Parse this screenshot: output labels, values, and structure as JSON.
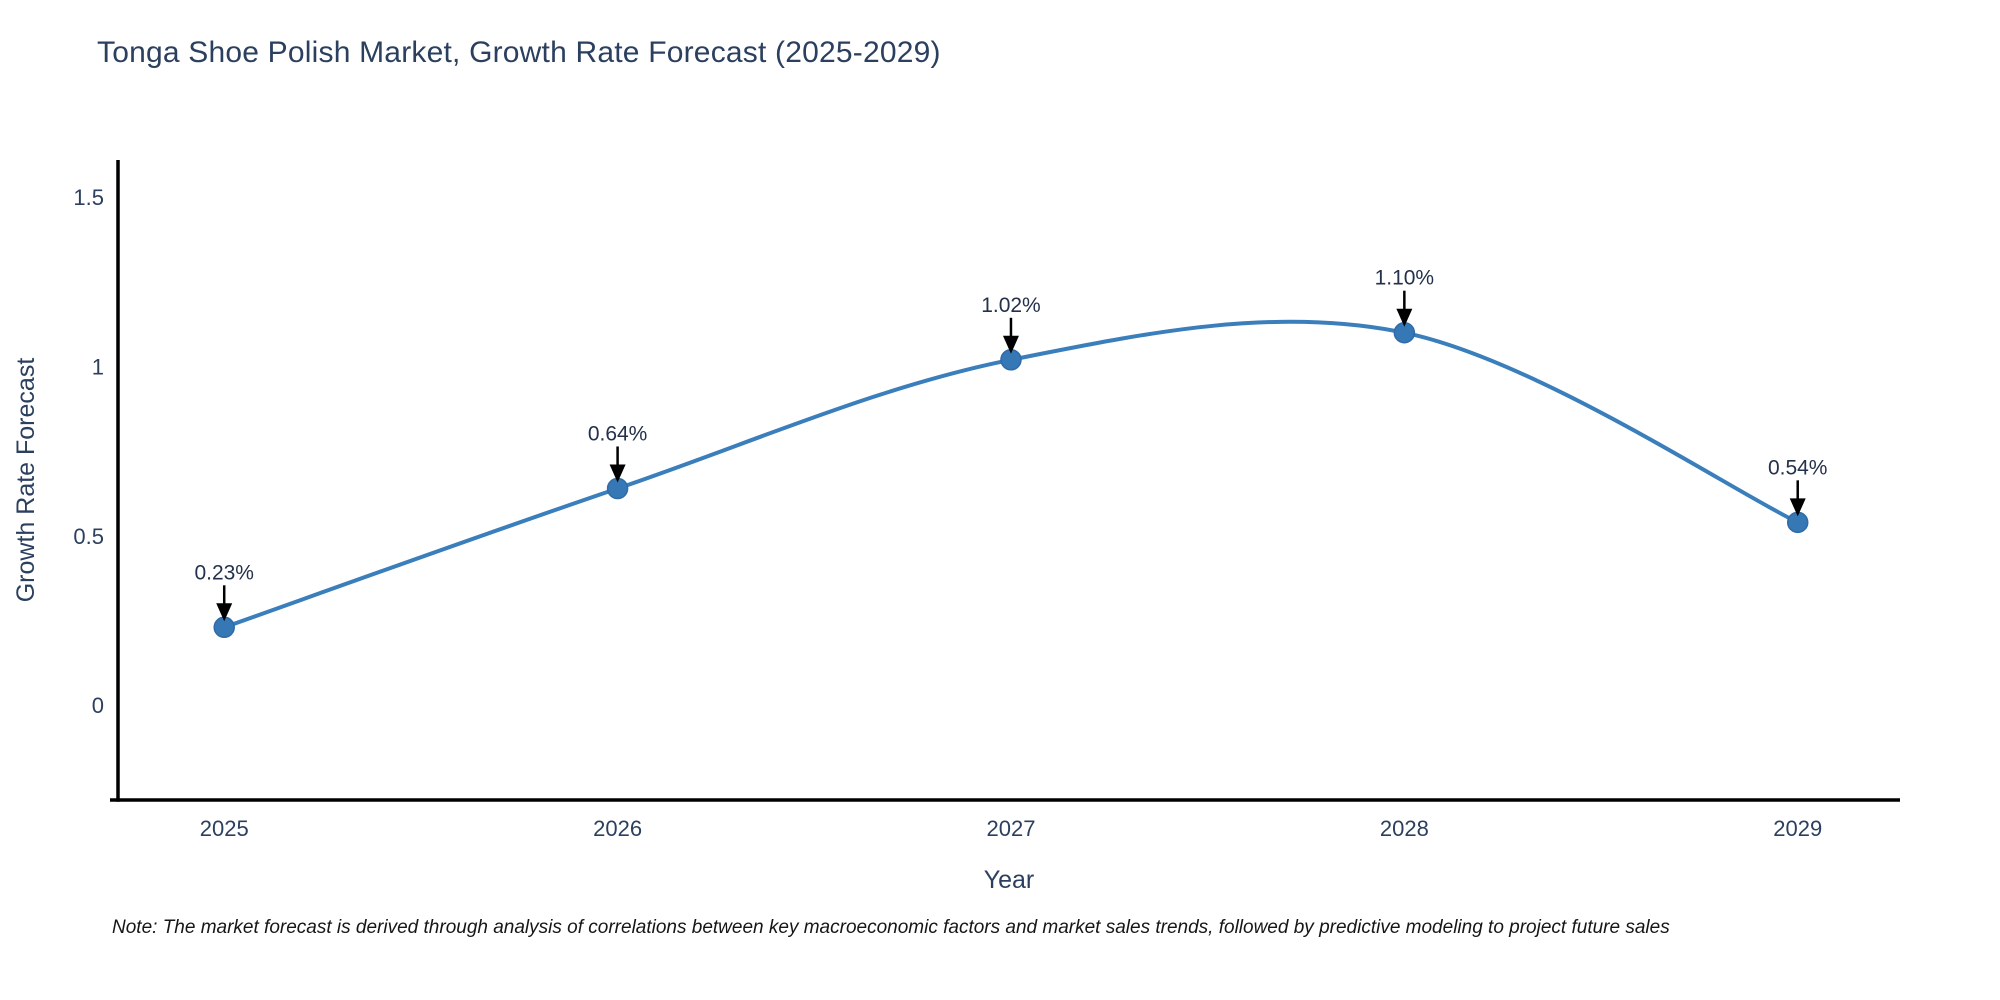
{
  "title": "Tonga Shoe Polish Market, Growth Rate Forecast (2025-2029)",
  "note": "Note: The market forecast is derived through analysis of correlations between key macroeconomic factors and market sales trends, followed by predictive modeling to project future sales",
  "chart_data": {
    "type": "line",
    "line_shape": "spline",
    "grid": false,
    "title": "Tonga Shoe Polish Market, Growth Rate Forecast (2025-2029)",
    "xlabel": "Year",
    "ylabel": "Growth Rate Forecast",
    "x": [
      2025,
      2026,
      2027,
      2028,
      2029
    ],
    "x_tick_labels": [
      "2025",
      "2026",
      "2027",
      "2028",
      "2029"
    ],
    "values": [
      0.23,
      0.64,
      1.02,
      1.1,
      0.54
    ],
    "point_labels": [
      "0.23%",
      "0.64%",
      "1.02%",
      "1.10%",
      "0.54%"
    ],
    "y_ticks": [
      0,
      0.5,
      1,
      1.5
    ],
    "y_tick_labels": [
      "0",
      "0.5",
      "1",
      "1.5"
    ],
    "xlim": [
      2024.73,
      2029.26
    ],
    "ylim": [
      -0.28,
      1.61
    ],
    "colors": {
      "line": "#3b7ebc",
      "marker_fill": "#3678b5",
      "marker_stroke": "#2e6ba8",
      "axis": "#000000",
      "tick_text": "#2b3f5e",
      "axis_title_text": "#2b3f5e",
      "annotation_text": "#23314a",
      "arrow": "#000000"
    }
  }
}
